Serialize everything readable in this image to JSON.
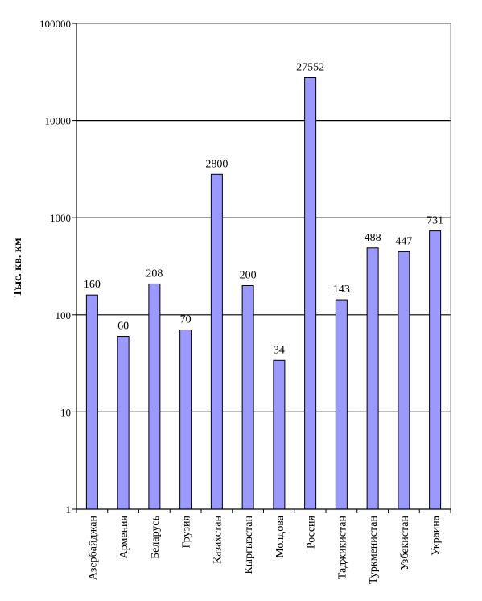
{
  "chart_data": {
    "type": "bar",
    "ylabel": "Тыс. кв. км",
    "y_scale": "log",
    "ylim": [
      1,
      100000
    ],
    "y_ticks": [
      1,
      10,
      100,
      1000,
      10000,
      100000
    ],
    "y_tick_labels": [
      "1",
      "10",
      "100",
      "1000",
      "10000",
      "100000"
    ],
    "grid": true,
    "bar_color": "#9999ff",
    "categories": [
      "Азербайджан",
      "Армения",
      "Беларусь",
      "Грузия",
      "Казахстан",
      "Кыргызстан",
      "Молдова",
      "Россия",
      "Таджикистан",
      "Туркменистан",
      "Узбекистан",
      "Украина"
    ],
    "values": [
      160,
      60,
      208,
      70,
      2800,
      200,
      34,
      27552,
      143,
      488,
      447,
      731
    ],
    "value_labels": [
      "160",
      "60",
      "208",
      "70",
      "2800",
      "200",
      "34",
      "27552",
      "143",
      "488",
      "447",
      "731"
    ]
  }
}
